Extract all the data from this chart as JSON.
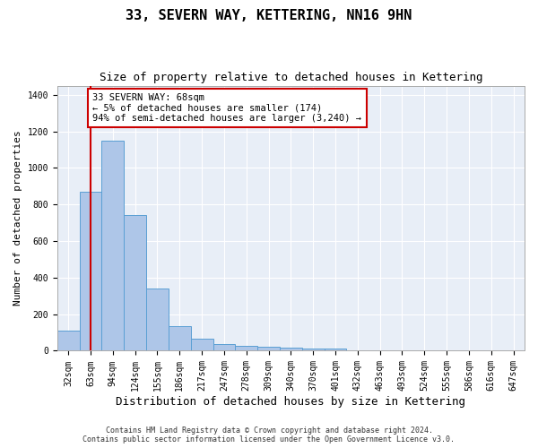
{
  "title": "33, SEVERN WAY, KETTERING, NN16 9HN",
  "subtitle": "Size of property relative to detached houses in Kettering",
  "xlabel": "Distribution of detached houses by size in Kettering",
  "ylabel": "Number of detached properties",
  "categories": [
    "32sqm",
    "63sqm",
    "94sqm",
    "124sqm",
    "155sqm",
    "186sqm",
    "217sqm",
    "247sqm",
    "278sqm",
    "309sqm",
    "340sqm",
    "370sqm",
    "401sqm",
    "432sqm",
    "463sqm",
    "493sqm",
    "524sqm",
    "555sqm",
    "586sqm",
    "616sqm",
    "647sqm"
  ],
  "values": [
    110,
    870,
    1150,
    740,
    340,
    135,
    65,
    38,
    28,
    20,
    17,
    10,
    10,
    0,
    0,
    0,
    0,
    0,
    0,
    0,
    0
  ],
  "bar_color": "#aec6e8",
  "bar_edge_color": "#5a9fd4",
  "vline_color": "#cc0000",
  "vline_x": 1.0,
  "annotation_text": "33 SEVERN WAY: 68sqm\n← 5% of detached houses are smaller (174)\n94% of semi-detached houses are larger (3,240) →",
  "annotation_box_color": "#ffffff",
  "annotation_box_edge_color": "#cc0000",
  "ylim": [
    0,
    1450
  ],
  "yticks": [
    0,
    200,
    400,
    600,
    800,
    1000,
    1200,
    1400
  ],
  "plot_bg_color": "#e8eef7",
  "footer_line1": "Contains HM Land Registry data © Crown copyright and database right 2024.",
  "footer_line2": "Contains public sector information licensed under the Open Government Licence v3.0.",
  "title_fontsize": 11,
  "subtitle_fontsize": 9,
  "xlabel_fontsize": 9,
  "ylabel_fontsize": 8,
  "tick_fontsize": 7,
  "annotation_fontsize": 7.5,
  "footer_fontsize": 6
}
